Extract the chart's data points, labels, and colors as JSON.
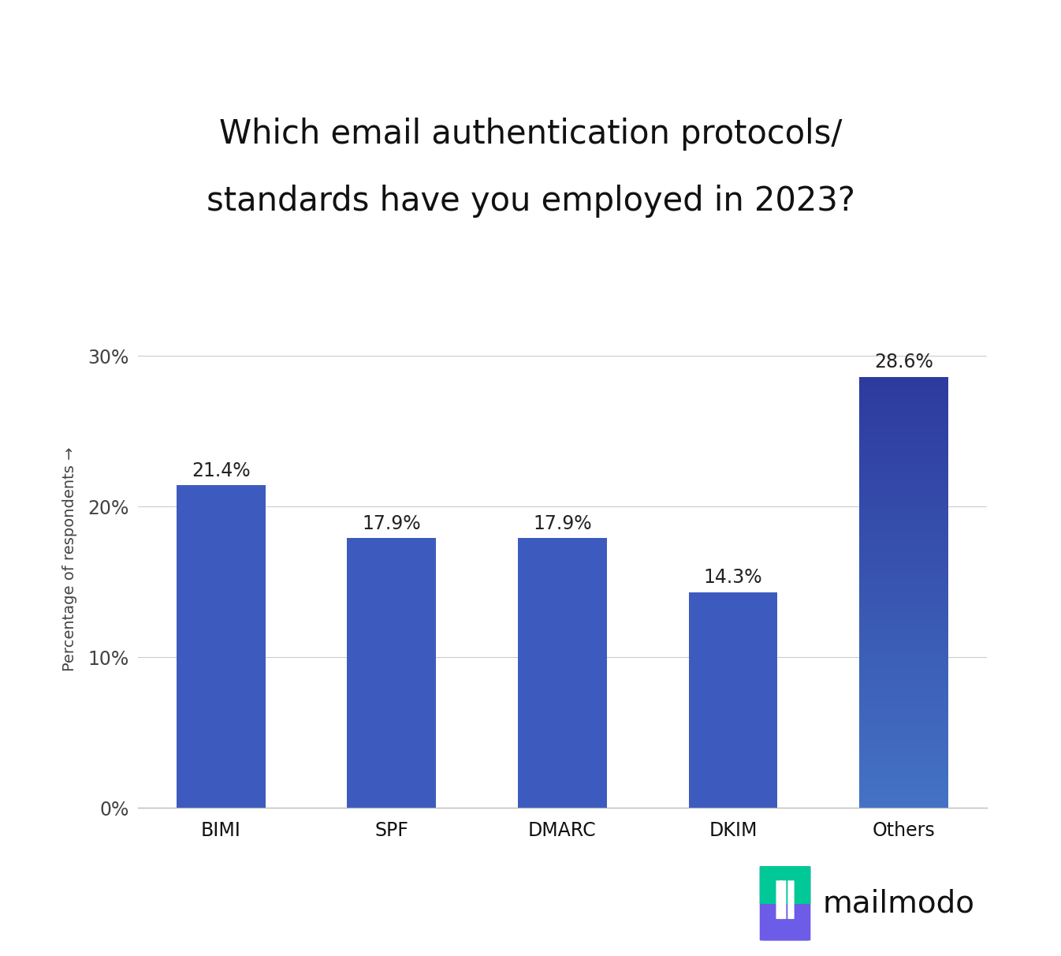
{
  "categories": [
    "BIMI",
    "SPF",
    "DMARC",
    "DKIM",
    "Others"
  ],
  "values": [
    21.4,
    17.9,
    17.9,
    14.3,
    28.6
  ],
  "labels": [
    "21.4%",
    "17.9%",
    "17.9%",
    "14.3%",
    "28.6%"
  ],
  "bar_color_uniform": "#3D5BBF",
  "bar_color_others_top": "#2D3A9E",
  "bar_color_others_bottom": "#4472C4",
  "title_line1": "Which email authentication protocols/",
  "title_line2": "standards have you employed in 2023?",
  "ylabel": "Percentage of respondents →",
  "yticks": [
    0,
    10,
    20,
    30
  ],
  "ytick_labels": [
    "0%",
    "10%",
    "20%",
    "30%"
  ],
  "ylim": [
    0,
    33
  ],
  "background_color": "#ffffff",
  "footer_color": "#eef0fa",
  "title_fontsize": 30,
  "label_fontsize": 17,
  "tick_fontsize": 17,
  "ylabel_fontsize": 14,
  "bar_width": 0.52
}
